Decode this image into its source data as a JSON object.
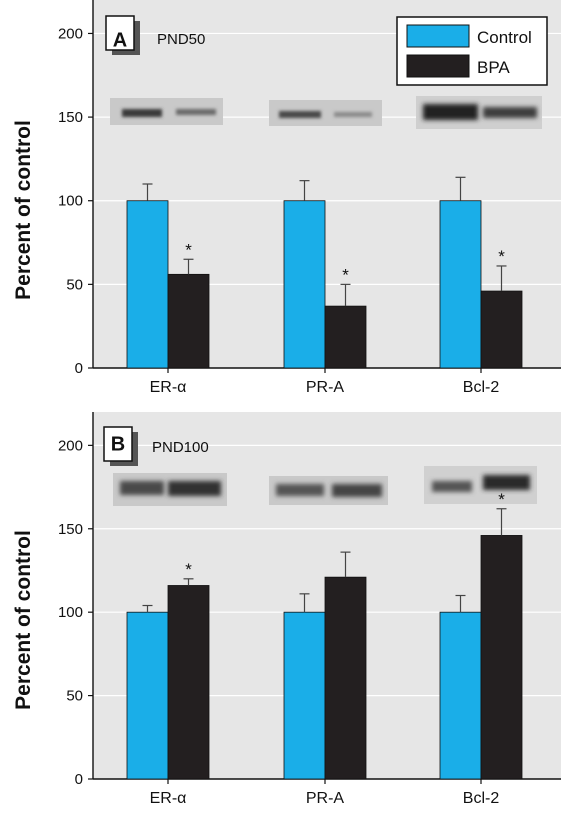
{
  "legend": [
    {
      "label": "Control",
      "color": "#1aaee8"
    },
    {
      "label": "BPA",
      "color": "#231f20"
    }
  ],
  "colors": {
    "plot_bg": "#e6e6e6",
    "grid": "#ffffff",
    "error_bar": "#444444"
  },
  "chart_data": [
    {
      "type": "bar",
      "panel": "A",
      "subtitle": "PND50",
      "ylabel": "Percent of control",
      "categories": [
        "ER-α",
        "PR-A",
        "Bcl-2"
      ],
      "ylim": [
        0,
        220
      ],
      "yticks": [
        0,
        50,
        100,
        150,
        200
      ],
      "grid": true,
      "legend_position": "top-right",
      "series": [
        {
          "name": "Control",
          "values": [
            100,
            100,
            100
          ],
          "errors": [
            10,
            12,
            14
          ]
        },
        {
          "name": "BPA",
          "values": [
            56,
            37,
            46
          ],
          "errors": [
            9,
            13,
            15
          ]
        }
      ],
      "significance": [
        {
          "series": "BPA",
          "category": "ER-α",
          "mark": "*"
        },
        {
          "series": "BPA",
          "category": "PR-A",
          "mark": "*"
        },
        {
          "series": "BPA",
          "category": "Bcl-2",
          "mark": "*"
        }
      ],
      "blot_images": [
        "ER-α",
        "PR-A",
        "Bcl-2"
      ]
    },
    {
      "type": "bar",
      "panel": "B",
      "subtitle": "PND100",
      "ylabel": "Percent of control",
      "categories": [
        "ER-α",
        "PR-A",
        "Bcl-2"
      ],
      "ylim": [
        0,
        220
      ],
      "yticks": [
        0,
        50,
        100,
        150,
        200
      ],
      "grid": true,
      "series": [
        {
          "name": "Control",
          "values": [
            100,
            100,
            100
          ],
          "errors": [
            4,
            11,
            10
          ]
        },
        {
          "name": "BPA",
          "values": [
            116,
            121,
            146
          ],
          "errors": [
            4,
            15,
            16
          ]
        }
      ],
      "significance": [
        {
          "series": "BPA",
          "category": "ER-α",
          "mark": "*"
        },
        {
          "series": "BPA",
          "category": "Bcl-2",
          "mark": "*"
        }
      ],
      "blot_images": [
        "ER-α",
        "PR-A",
        "Bcl-2"
      ]
    }
  ]
}
